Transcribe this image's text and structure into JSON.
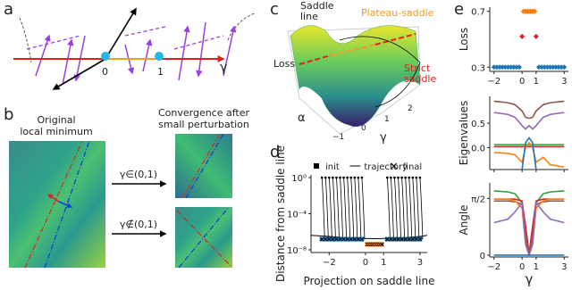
{
  "panel_labels": [
    "a",
    "b",
    "c",
    "d",
    "e"
  ],
  "panel_a": {
    "origin": "0",
    "one": "1",
    "axis": "γ"
  },
  "panel_b": {
    "left_title": [
      "Original",
      "local minimum"
    ],
    "right_title": [
      "Convergence after",
      "small perturbation"
    ],
    "inside": "γ∈(0,1)",
    "outside": "γ∉(0,1)"
  },
  "panel_c": {
    "saddle_line": [
      "Saddle",
      "line"
    ],
    "plateau": "Plateau-saddle",
    "strict": [
      "Strict",
      "saddle"
    ],
    "loss": "Loss",
    "alpha": "α",
    "gamma": "γ",
    "ticks": [
      "−1",
      "0",
      "1",
      "2"
    ]
  },
  "chart_data": [
    {
      "type": "scatter",
      "xlabel": "Projection on saddle line",
      "ylabel": "Distance from saddle line",
      "ylog": true,
      "legend": "upper center",
      "xlim": [
        -3,
        3.4
      ],
      "ylim": [
        5e-09,
        2
      ],
      "xticks": [
        {
          "value": -2,
          "label": "−2"
        },
        0,
        1,
        3
      ],
      "yticks": [
        {
          "value": 1,
          "label": "10⁰"
        },
        {
          "value": 0.0001,
          "label": "10⁻⁴"
        },
        {
          "value": 1e-08,
          "label": "10⁻⁸"
        }
      ],
      "series": [
        {
          "name": "init",
          "marker": "square",
          "color": "#000000",
          "x": [
            -2.4,
            -2.2,
            -2.0,
            -1.8,
            -1.6,
            -1.4,
            -1.2,
            -1.0,
            -0.8,
            -0.6,
            -0.4,
            -0.2,
            1.2,
            1.4,
            1.6,
            1.8,
            2.0,
            2.2,
            2.4,
            2.6,
            2.8,
            3.0
          ],
          "values": [
            1,
            1,
            1,
            1,
            1,
            1,
            1,
            1,
            1,
            1,
            1,
            1,
            1,
            1,
            1,
            1,
            1,
            1,
            1,
            1,
            1,
            1
          ]
        },
        {
          "name": "trajectory",
          "line": true,
          "color": "#000000",
          "x": [
            -3,
            -2,
            -1,
            0,
            0.5,
            1,
            2,
            3,
            3.4
          ],
          "values": [
            4e-07,
            3e-07,
            2.2e-07,
            1.8e-07,
            1.7e-07,
            1.8e-07,
            2.2e-07,
            3e-07,
            4e-07
          ]
        },
        {
          "name": "final",
          "marker": "x",
          "color": "#000000",
          "x": [
            -2.4,
            -2.2,
            -2.0,
            -1.8,
            -1.6,
            -1.4,
            -1.2,
            -1.0,
            -0.8,
            -0.6,
            -0.4,
            -0.2,
            0.1,
            0.2,
            0.3,
            0.4,
            0.5,
            0.6,
            0.7,
            0.8,
            0.9,
            1.2,
            1.4,
            1.6,
            1.8,
            2.0,
            2.2,
            2.4,
            2.6,
            2.8,
            3.0
          ],
          "values": [
            1.5e-07,
            1.5e-07,
            1.5e-07,
            1.5e-07,
            1.5e-07,
            1.5e-07,
            1.5e-07,
            1.5e-07,
            1.5e-07,
            1.5e-07,
            1.5e-07,
            1.5e-07,
            4e-08,
            4e-08,
            4e-08,
            4e-08,
            4e-08,
            4e-08,
            4e-08,
            4e-08,
            4e-08,
            1.5e-07,
            1.5e-07,
            1.5e-07,
            1.5e-07,
            1.5e-07,
            1.5e-07,
            1.5e-07,
            1.5e-07,
            1.5e-07,
            1.5e-07
          ],
          "point_colors": [
            "#1f77b4",
            "#1f77b4",
            "#1f77b4",
            "#1f77b4",
            "#1f77b4",
            "#1f77b4",
            "#1f77b4",
            "#1f77b4",
            "#1f77b4",
            "#1f77b4",
            "#1f77b4",
            "#1f77b4",
            "#ff7f0e",
            "#ff7f0e",
            "#ff7f0e",
            "#ff7f0e",
            "#ff7f0e",
            "#ff7f0e",
            "#ff7f0e",
            "#ff7f0e",
            "#ff7f0e",
            "#1f77b4",
            "#1f77b4",
            "#1f77b4",
            "#1f77b4",
            "#1f77b4",
            "#1f77b4",
            "#1f77b4",
            "#1f77b4",
            "#1f77b4",
            "#1f77b4"
          ]
        }
      ]
    },
    {
      "type": "scatter",
      "ylabel": "Loss",
      "xlim": [
        -2.3,
        3.3
      ],
      "ylim": [
        0.27,
        0.73
      ],
      "xticks": [
        {
          "value": -2,
          "label": "−2"
        },
        0,
        1,
        3
      ],
      "yticks": [
        0.3,
        0.7
      ],
      "series": [
        {
          "marker": "diamond",
          "color": "#1f77b4",
          "x": [
            -2.0,
            -1.8,
            -1.6,
            -1.4,
            -1.2,
            -1.0,
            -0.8,
            -0.6,
            -0.4,
            -0.2,
            1.2,
            1.4,
            1.6,
            1.8,
            2.0,
            2.2,
            2.4,
            2.6,
            2.8,
            3.0
          ],
          "values": [
            0.3,
            0.3,
            0.3,
            0.3,
            0.3,
            0.3,
            0.3,
            0.3,
            0.3,
            0.3,
            0.3,
            0.3,
            0.3,
            0.3,
            0.3,
            0.3,
            0.3,
            0.3,
            0.3,
            0.3
          ]
        },
        {
          "marker": "diamond",
          "color": "#ff7f0e",
          "x": [
            0.1,
            0.2,
            0.3,
            0.4,
            0.5,
            0.6,
            0.7,
            0.8,
            0.9
          ],
          "values": [
            0.7,
            0.7,
            0.7,
            0.7,
            0.7,
            0.7,
            0.7,
            0.7,
            0.7
          ]
        },
        {
          "marker": "diamond",
          "color": "#d62728",
          "x": [
            0,
            1
          ],
          "values": [
            0.52,
            0.52
          ]
        }
      ]
    },
    {
      "type": "line",
      "ylabel": "Eigenvalues",
      "xtick_labels": false,
      "xlim": [
        -2.3,
        3.3
      ],
      "ylim": [
        -0.45,
        1.05
      ],
      "xticks": [
        {
          "value": -2,
          "label": "−2"
        },
        0,
        1,
        3
      ],
      "yticks": [
        {
          "value": 0,
          "label": "0.0"
        },
        0.5
      ],
      "x": [
        -2,
        -1,
        -0.5,
        0,
        0.25,
        0.5,
        0.75,
        1,
        1.5,
        2,
        3
      ],
      "series": [
        {
          "color": "#8c564b",
          "values": [
            0.95,
            0.92,
            0.88,
            0.75,
            0.62,
            0.6,
            0.62,
            0.75,
            0.88,
            0.92,
            0.95
          ]
        },
        {
          "color": "#9467bd",
          "values": [
            0.72,
            0.68,
            0.62,
            0.45,
            0.38,
            0.45,
            0.38,
            0.45,
            0.62,
            0.68,
            0.72
          ]
        },
        {
          "color": "#2ca02c",
          "values": [
            0.06,
            0.06,
            0.06,
            0.06,
            0.06,
            0.06,
            0.06,
            0.06,
            0.06,
            0.06,
            0.06
          ]
        },
        {
          "color": "#d62728",
          "values": [
            0.02,
            0.02,
            0.02,
            0.02,
            0.02,
            0.02,
            0.02,
            0.02,
            0.02,
            0.02,
            0.02
          ]
        },
        {
          "color": "#ff7f0e",
          "values": [
            -0.1,
            -0.12,
            -0.15,
            -0.3,
            0.0,
            0.1,
            0.0,
            -0.3,
            -0.2,
            -0.35,
            -0.4
          ]
        },
        {
          "color": "#1f77b4",
          "values": [
            null,
            null,
            null,
            -0.45,
            0.1,
            0.2,
            0.1,
            -0.45,
            null,
            null,
            null
          ]
        }
      ]
    },
    {
      "type": "line",
      "ylabel": "Angle",
      "xlabel": "γ",
      "xlim": [
        -2.3,
        3.3
      ],
      "ylim": [
        -0.05,
        2.0
      ],
      "xticks": [
        {
          "value": -2,
          "label": "−2"
        },
        0,
        1,
        3
      ],
      "yticks": [
        0,
        {
          "value": 1.5708,
          "label": "π/2"
        }
      ],
      "x": [
        -2,
        -1,
        -0.5,
        0,
        0.25,
        0.5,
        0.75,
        1,
        1.5,
        2,
        3
      ],
      "series": [
        {
          "color": "#2ca02c",
          "values": [
            1.78,
            1.75,
            1.7,
            1.45,
            0.6,
            0.1,
            0.6,
            1.45,
            1.7,
            1.75,
            1.78
          ]
        },
        {
          "color": "#d62728",
          "values": [
            1.55,
            1.55,
            1.55,
            1.5,
            0.8,
            0.05,
            0.8,
            1.5,
            1.55,
            1.55,
            1.55
          ]
        },
        {
          "color": "#8c564b",
          "values": [
            1.5,
            1.5,
            1.48,
            1.4,
            0.5,
            0.05,
            0.5,
            1.4,
            1.48,
            1.5,
            1.5
          ]
        },
        {
          "color": "#ff7f0e",
          "values": [
            1.55,
            1.55,
            1.5,
            1.3,
            0.3,
            0.0,
            0.3,
            1.3,
            1.5,
            1.55,
            1.55
          ]
        },
        {
          "color": "#9467bd",
          "values": [
            0.9,
            1.0,
            1.2,
            1.45,
            0.3,
            0.0,
            0.3,
            1.45,
            1.2,
            1.0,
            0.9
          ]
        },
        {
          "color": "#1f77b4",
          "values": [
            0,
            0,
            0,
            0,
            0,
            0,
            0,
            0,
            0,
            0,
            0
          ]
        }
      ]
    }
  ]
}
